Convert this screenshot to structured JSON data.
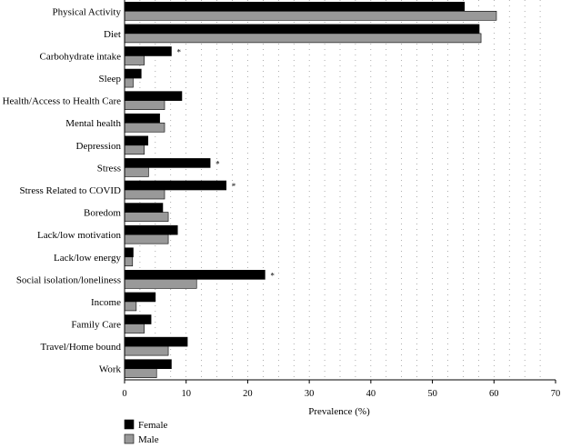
{
  "chart_data": {
    "type": "bar",
    "orientation": "horizontal",
    "categories": [
      "Physical Activity",
      "Diet",
      "Carbohydrate intake",
      "Sleep",
      "Health/Access to Health Care",
      "Mental health",
      "Depression",
      "Stress",
      "Stress Related to COVID",
      "Boredom",
      "Lack/low motivation",
      "Lack/low energy",
      "Social isolation/loneliness",
      "Income",
      "Family Care",
      "Travel/Home bound",
      "Work"
    ],
    "series": [
      {
        "name": "Female",
        "color": "#000000",
        "values": [
          55.2,
          57.6,
          7.6,
          2.7,
          9.3,
          5.7,
          3.8,
          13.9,
          16.5,
          6.2,
          8.6,
          1.4,
          22.8,
          5.0,
          4.3,
          10.2,
          7.6
        ]
      },
      {
        "name": "Male",
        "color": "#999999",
        "values": [
          60.4,
          57.9,
          3.2,
          1.4,
          6.5,
          6.5,
          3.2,
          3.9,
          6.5,
          7.1,
          7.1,
          1.3,
          11.7,
          1.9,
          3.2,
          7.1,
          5.2
        ]
      }
    ],
    "significant": [
      false,
      false,
      true,
      false,
      false,
      false,
      false,
      true,
      true,
      false,
      false,
      false,
      true,
      false,
      false,
      false,
      false
    ],
    "significance_marker": "*",
    "xlabel": "Prevalence (%)",
    "xlim": [
      0,
      70
    ],
    "xticks": [
      0,
      10,
      20,
      30,
      40,
      50,
      60,
      70
    ],
    "grid": "vertical dotted",
    "legend_position": "bottom-left"
  }
}
